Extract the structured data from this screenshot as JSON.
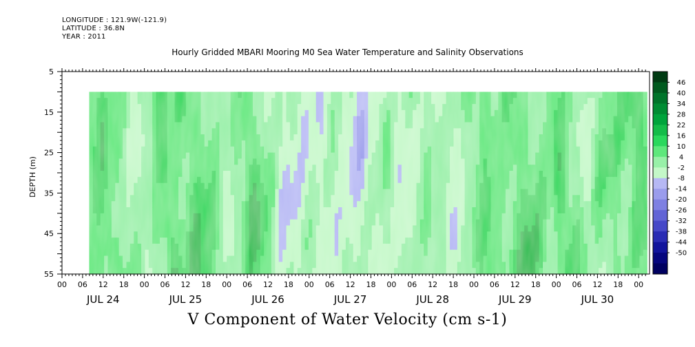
{
  "header": {
    "longitude": "LONGITUDE : 121.9W(-121.9)",
    "latitude": "LATITUDE : 36.8N",
    "year": "YEAR : 2011",
    "title": "Hourly Gridded MBARI Mooring M0 Sea Water Temperature and Salinity Observations"
  },
  "chart_data": {
    "type": "heatmap",
    "title": "Hourly Gridded MBARI Mooring M0 Sea Water Temperature and Salinity Observations",
    "xlabel": "",
    "ylabel": "DEPTH (m)",
    "variable_label": "V Component of Water Velocity (cm s-1)",
    "x_hour_ticks": [
      "00",
      "06",
      "12",
      "18",
      "00",
      "06",
      "12",
      "18",
      "00",
      "06",
      "12",
      "18",
      "00",
      "06",
      "12",
      "18",
      "00",
      "06",
      "12",
      "18",
      "00",
      "06",
      "12",
      "18",
      "00",
      "06",
      "12",
      "18",
      "00"
    ],
    "x_day_labels": [
      "JUL 24",
      "JUL 25",
      "JUL 26",
      "JUL 27",
      "JUL 28",
      "JUL 29",
      "JUL 30"
    ],
    "xlim_days": [
      0,
      7.1
    ],
    "data_start_day": 0.33,
    "y_ticks": [
      5,
      15,
      25,
      35,
      45,
      55
    ],
    "ylim": [
      5,
      55
    ],
    "data_depth_range": [
      10,
      55
    ],
    "colorbar": {
      "levels": [
        "46",
        "40",
        "34",
        "28",
        "22",
        "16",
        "10",
        "4",
        "-2",
        "-8",
        "-14",
        "-20",
        "-26",
        "-32",
        "-38",
        "-44",
        "-50"
      ],
      "colors": [
        "#003a12",
        "#005a1e",
        "#00742a",
        "#008c33",
        "#00a43c",
        "#14bc49",
        "#2ad85c",
        "#5ee87c",
        "#98f0a8",
        "#c4f8c8",
        "#b6b8f4",
        "#9a9cec",
        "#7e80e2",
        "#6264d6",
        "#4648c8",
        "#2a2cb4",
        "#12149c",
        "#06067e",
        "#000060"
      ]
    },
    "v_by_time": [
      {
        "day": 0.33,
        "v": 10
      },
      {
        "day": 0.5,
        "v": 14
      },
      {
        "day": 0.65,
        "v": 6
      },
      {
        "day": 0.8,
        "v": 2
      },
      {
        "day": 0.95,
        "v": -4
      },
      {
        "day": 1.1,
        "v": 5
      },
      {
        "day": 1.25,
        "v": 16
      },
      {
        "day": 1.4,
        "v": 8
      },
      {
        "day": 1.55,
        "v": 14
      },
      {
        "day": 1.7,
        "v": 12
      },
      {
        "day": 1.85,
        "v": 6
      },
      {
        "day": 2.0,
        "v": -3
      },
      {
        "day": 2.15,
        "v": 8
      },
      {
        "day": 2.3,
        "v": 14
      },
      {
        "day": 2.45,
        "v": 6
      },
      {
        "day": 2.6,
        "v": -4
      },
      {
        "day": 2.75,
        "v": -6
      },
      {
        "day": 2.9,
        "v": -2
      },
      {
        "day": 3.05,
        "v": -4
      },
      {
        "day": 3.2,
        "v": -6
      },
      {
        "day": 3.35,
        "v": -2
      },
      {
        "day": 3.5,
        "v": -6
      },
      {
        "day": 3.65,
        "v": -8
      },
      {
        "day": 3.8,
        "v": -4
      },
      {
        "day": 3.95,
        "v": 2
      },
      {
        "day": 4.1,
        "v": -6
      },
      {
        "day": 4.25,
        "v": -3
      },
      {
        "day": 4.4,
        "v": 4
      },
      {
        "day": 4.55,
        "v": 2
      },
      {
        "day": 4.7,
        "v": -6
      },
      {
        "day": 4.85,
        "v": -3
      },
      {
        "day": 5.0,
        "v": 8
      },
      {
        "day": 5.15,
        "v": 12
      },
      {
        "day": 5.3,
        "v": 6
      },
      {
        "day": 5.45,
        "v": 10
      },
      {
        "day": 5.6,
        "v": 14
      },
      {
        "day": 5.75,
        "v": 8
      },
      {
        "day": 5.9,
        "v": 4
      },
      {
        "day": 6.05,
        "v": 14
      },
      {
        "day": 6.2,
        "v": 8
      },
      {
        "day": 6.35,
        "v": -4
      },
      {
        "day": 6.5,
        "v": 4
      },
      {
        "day": 6.65,
        "v": 8
      },
      {
        "day": 6.8,
        "v": 6
      },
      {
        "day": 6.95,
        "v": 12
      },
      {
        "day": 7.05,
        "v": 14
      }
    ]
  }
}
